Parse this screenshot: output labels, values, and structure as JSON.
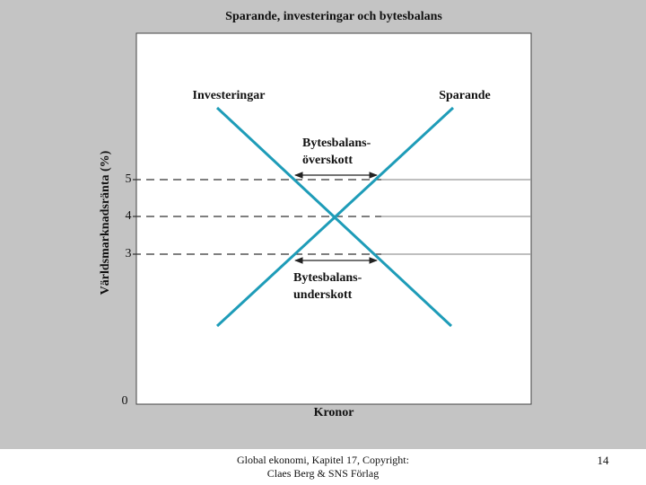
{
  "title": "Sparande, investeringar och bytesbalans",
  "y_axis_label": "Världsmarknadsränta (%)",
  "x_axis_label": "Kronor",
  "yticks": [
    "5",
    "4",
    "3",
    "0"
  ],
  "lines": [
    {
      "label": "Investeringar"
    },
    {
      "label": "Sparande"
    }
  ],
  "annotations": [
    {
      "lines": [
        "Bytesbalans-",
        "överskott"
      ]
    },
    {
      "lines": [
        "Bytesbalans-",
        "underskott"
      ]
    }
  ],
  "footer": {
    "lines": [
      "Global ekonomi, Kapitel 17, Copyright:",
      "Claes Berg & SNS Förlag"
    ],
    "page": "14"
  }
}
